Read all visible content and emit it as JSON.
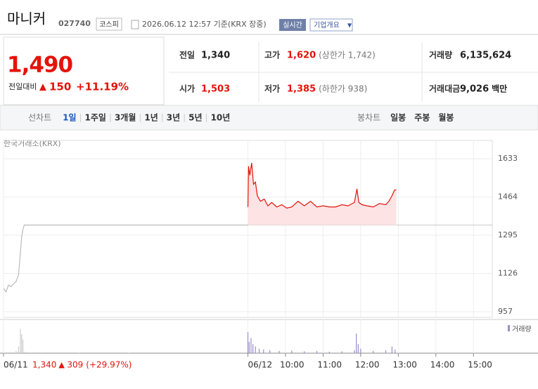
{
  "header": {
    "name": "마니커",
    "code": "027740",
    "market": "코스피",
    "datetime": "2026.06.12 12:57 기준(KRX 장중)",
    "realtime": "실시간",
    "overview": "기업개요"
  },
  "quote": {
    "price": "1,490",
    "change_label": "전일대비",
    "change": "150",
    "rate": "+11.19%"
  },
  "stats": [
    {
      "label": "전일",
      "value": "1,340",
      "color": "#222"
    },
    {
      "label": "고가",
      "value": "1,620",
      "note": "(상한가 1,742)",
      "color": "#e3140a"
    },
    {
      "label": "거래량",
      "value": "6,135,624",
      "color": "#222"
    },
    {
      "label": "시가",
      "value": "1,503",
      "color": "#e3140a"
    },
    {
      "label": "저가",
      "value": "1,385",
      "note": "(하한가 938)",
      "color": "#e3140a"
    },
    {
      "label": "거래대금",
      "value": "9,026",
      "note": "백만",
      "color": "#222"
    }
  ],
  "tabs": {
    "line": [
      "선차트",
      "1일",
      "1주일",
      "3개월",
      "1년",
      "3년",
      "5년",
      "10년"
    ],
    "line_selected": 1,
    "candle": [
      "봉차트",
      "일봉",
      "주봉",
      "월봉"
    ]
  },
  "chart_data": {
    "type": "line",
    "source": "한국거래소(KRX)",
    "xlim": [
      0,
      780
    ],
    "ylim": [
      932,
      1714
    ],
    "yticks": [
      957,
      1126,
      1295,
      1464,
      1633
    ],
    "xticks": [
      {
        "value": 0,
        "label": "06/11"
      },
      {
        "value": 390,
        "label": "06/12"
      },
      {
        "value": 450,
        "label": "10:00"
      },
      {
        "value": 510,
        "label": "11:00"
      },
      {
        "value": 570,
        "label": "12:00"
      },
      {
        "value": 630,
        "label": "13:00"
      },
      {
        "value": 690,
        "label": "14:00"
      },
      {
        "value": 750,
        "label": "15:00"
      }
    ],
    "reference": 1340,
    "prev_day": {
      "close": "1,340",
      "change": "309",
      "rate": "(+29.97%)"
    },
    "series": [
      {
        "name": "06/11",
        "color": "#bbbbbb",
        "x": [
          0,
          4,
          8,
          12,
          16,
          20,
          24,
          27,
          29,
          31,
          33,
          390
        ],
        "values": [
          1060,
          1045,
          1075,
          1068,
          1080,
          1090,
          1120,
          1220,
          1290,
          1320,
          1340,
          1340
        ]
      },
      {
        "name": "06/12",
        "color": "#e3140a",
        "fill": "#fde3e3",
        "x": [
          390,
          391,
          393,
          396,
          399,
          402,
          405,
          410,
          416,
          422,
          428,
          436,
          444,
          452,
          460,
          470,
          480,
          490,
          500,
          510,
          520,
          530,
          540,
          550,
          560,
          564,
          567,
          572,
          580,
          590,
          600,
          610,
          615,
          620,
          624,
          627
        ],
        "values": [
          1420,
          1600,
          1560,
          1615,
          1520,
          1530,
          1470,
          1445,
          1455,
          1425,
          1440,
          1420,
          1430,
          1415,
          1420,
          1445,
          1425,
          1445,
          1420,
          1425,
          1420,
          1420,
          1430,
          1425,
          1440,
          1500,
          1440,
          1430,
          1425,
          1420,
          1435,
          1430,
          1445,
          1470,
          1495,
          1495
        ]
      }
    ],
    "volume": {
      "name": "거래량",
      "color": "#9b8fc8",
      "ylim": [
        0,
        400000
      ],
      "x": [
        20,
        24,
        27,
        29,
        31,
        35,
        60,
        120,
        200,
        390,
        392,
        395,
        398,
        402,
        408,
        415,
        425,
        440,
        460,
        480,
        500,
        520,
        540,
        560,
        563,
        566,
        570,
        590,
        610,
        620,
        625
      ],
      "values": [
        30000,
        90000,
        320000,
        250000,
        180000,
        20000,
        8000,
        6000,
        5000,
        280000,
        150000,
        200000,
        120000,
        90000,
        60000,
        50000,
        40000,
        30000,
        35000,
        25000,
        30000,
        20000,
        25000,
        40000,
        260000,
        120000,
        60000,
        30000,
        40000,
        90000,
        50000
      ]
    }
  }
}
